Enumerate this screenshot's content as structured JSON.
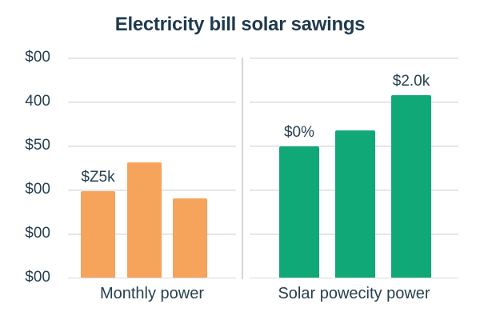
{
  "title": "Electricity bill solar sawings",
  "chart_data": {
    "type": "bar",
    "title": "Electricity bill solar sawings",
    "note": "values are in gridline intervals above the baseline; y-axis tick labels are garbled/decorative as rendered",
    "y_axis": {
      "tick_labels": [
        "$00",
        "400",
        "$50",
        "$00",
        "$00",
        "$00"
      ],
      "gridlines": true,
      "gridline_count": 6
    },
    "panels": [
      {
        "category": "Monthly power",
        "bar_color": "#F6A45C",
        "bars": [
          {
            "value": 1.96,
            "data_label": "$Z5k"
          },
          {
            "value": 2.62,
            "data_label": ""
          },
          {
            "value": 1.8,
            "data_label": ""
          }
        ]
      },
      {
        "category": "Solar powecity power",
        "bar_color": "#11A878",
        "bars": [
          {
            "value": 2.98,
            "data_label": "$0%"
          },
          {
            "value": 3.35,
            "data_label": ""
          },
          {
            "value": 4.14,
            "data_label": "$2.0k"
          }
        ]
      }
    ],
    "legend": false
  },
  "colors": {
    "title_text": "#1F3A4D",
    "axis_text": "#27404F",
    "orange_bar": "#F6A45C",
    "green_bar": "#11A878",
    "gridline": "#DCDCDC",
    "divider": "#D4D4D4",
    "background": "#FFFFFF"
  }
}
